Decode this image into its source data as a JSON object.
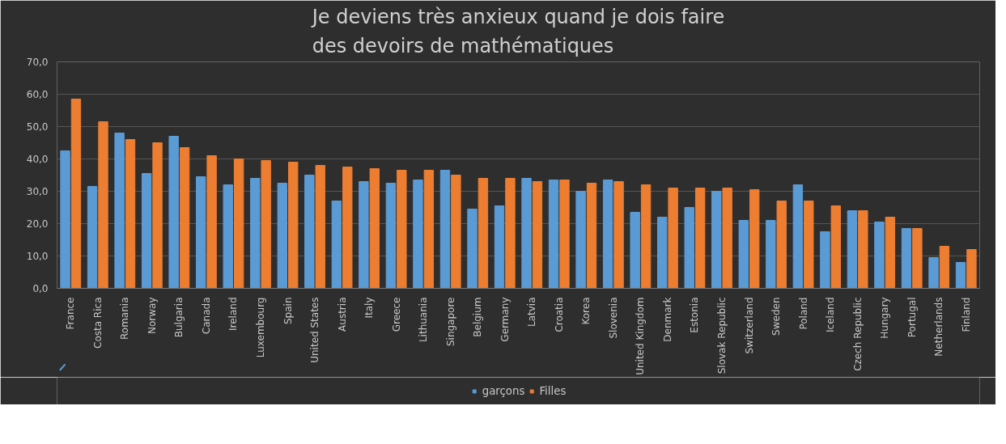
{
  "chart_data": {
    "type": "bar",
    "title": "Je deviens très anxieux quand je dois faire des devoirs de mathématiques",
    "categories": [
      "France",
      "Costa Rica",
      "Romania",
      "Norway",
      "Bulgaria",
      "Canada",
      "Ireland",
      "Luxembourg",
      "Spain",
      "United States",
      "Austria",
      "Italy",
      "Greece",
      "Lithuania",
      "Singapore",
      "Belgium",
      "Germany",
      "Latvia",
      "Croatia",
      "Korea",
      "Slovenia",
      "United Kingdom",
      "Denmark",
      "Estonia",
      "Slovak Republic",
      "Switzerland",
      "Sweden",
      "Poland",
      "Iceland",
      "Czech Republic",
      "Hungary",
      "Portugal",
      "Netherlands",
      "Finland"
    ],
    "series": [
      {
        "name": "garçons",
        "color": "#5b9bd5",
        "values": [
          42.5,
          31.5,
          48,
          35.5,
          47,
          34.5,
          32,
          34,
          32.5,
          35,
          27,
          33,
          32.5,
          33.5,
          36.5,
          24.5,
          25.5,
          34,
          33.5,
          30,
          33.5,
          23.5,
          22,
          25,
          30,
          21,
          21,
          32,
          17.5,
          24,
          20.5,
          18.5,
          9.5,
          8
        ]
      },
      {
        "name": "Filles",
        "color": "#ed7d31",
        "values": [
          58.5,
          51.5,
          46,
          45,
          43.5,
          41,
          40,
          39.5,
          39,
          38,
          37.5,
          37,
          36.5,
          36.5,
          35,
          34,
          34,
          33,
          33.5,
          32.5,
          33,
          32,
          31,
          31,
          31,
          30.5,
          27,
          27,
          25.5,
          24,
          22,
          18.5,
          13,
          12
        ]
      }
    ],
    "ylim": [
      0,
      70
    ],
    "yticks": [
      {
        "value": 0,
        "label": "0,0"
      },
      {
        "value": 10,
        "label": "10,0"
      },
      {
        "value": 20,
        "label": "20,0"
      },
      {
        "value": 30,
        "label": "30,0"
      },
      {
        "value": 40,
        "label": "40,0"
      },
      {
        "value": 50,
        "label": "50,0"
      },
      {
        "value": 60,
        "label": "60,0"
      },
      {
        "value": 70,
        "label": "70,0"
      }
    ],
    "grid": "y",
    "legend": "bottom"
  }
}
